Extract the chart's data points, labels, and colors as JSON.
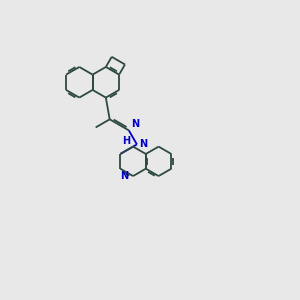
{
  "background_color": "#e8e8e8",
  "bond_color": "#2d4a3e",
  "nitrogen_color": "#0000cc",
  "bond_width": 1.3,
  "figsize": [
    3.0,
    3.0
  ],
  "dpi": 100,
  "xlim": [
    0,
    10
  ],
  "ylim": [
    0,
    10
  ]
}
